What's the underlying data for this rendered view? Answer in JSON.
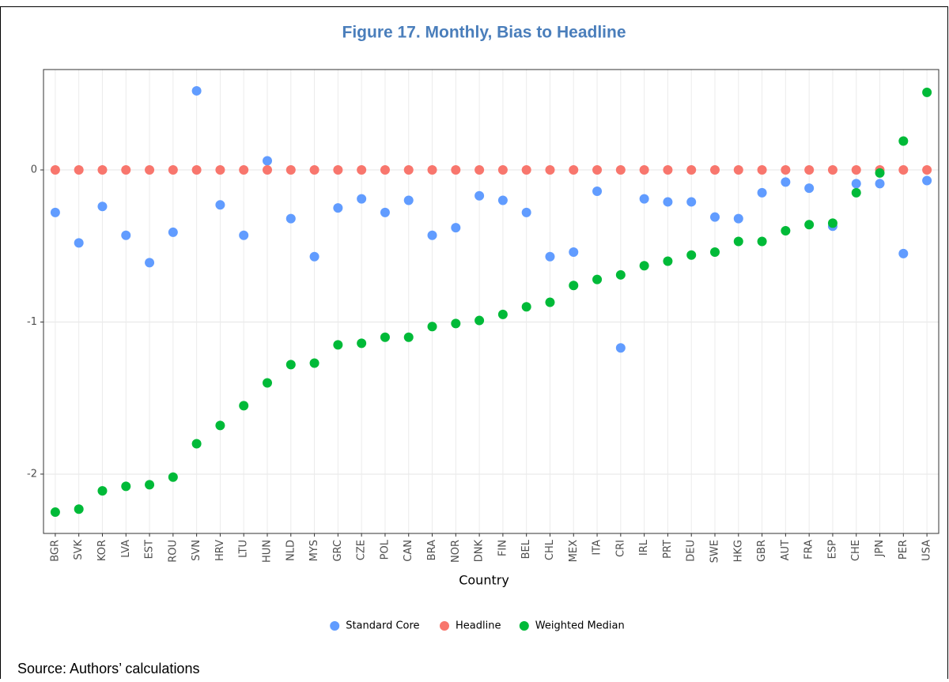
{
  "chart_data": {
    "type": "dot",
    "title": "Figure 17. Monthly, Bias to Headline",
    "xlabel": "Country",
    "categories": [
      "BGR",
      "SVK",
      "KOR",
      "LVA",
      "EST",
      "ROU",
      "SVN",
      "HRV",
      "LTU",
      "HUN",
      "NLD",
      "MYS",
      "GRC",
      "CZE",
      "POL",
      "CAN",
      "BRA",
      "NOR",
      "DNK",
      "FIN",
      "BEL",
      "CHL",
      "MEX",
      "ITA",
      "CRI",
      "IRL",
      "PRT",
      "DEU",
      "SWE",
      "HKG",
      "GBR",
      "AUT",
      "FRA",
      "ESP",
      "CHE",
      "JPN",
      "PER",
      "USA"
    ],
    "series": [
      {
        "name": "Standard Core",
        "color": "#619cff",
        "values": [
          -0.28,
          -0.48,
          -0.24,
          -0.43,
          -0.61,
          -0.41,
          0.52,
          -0.23,
          -0.43,
          0.06,
          -0.32,
          -0.57,
          -0.25,
          -0.19,
          -0.28,
          -0.2,
          -0.43,
          -0.38,
          -0.17,
          -0.2,
          -0.28,
          -0.57,
          -0.54,
          -0.14,
          -1.17,
          -0.19,
          -0.21,
          -0.21,
          -0.31,
          -0.32,
          -0.15,
          -0.08,
          -0.12,
          -0.37,
          -0.09,
          -0.09,
          -0.55,
          -0.07
        ]
      },
      {
        "name": "Headline",
        "color": "#f8766d",
        "values": [
          0,
          0,
          0,
          0,
          0,
          0,
          0,
          0,
          0,
          0,
          0,
          0,
          0,
          0,
          0,
          0,
          0,
          0,
          0,
          0,
          0,
          0,
          0,
          0,
          0,
          0,
          0,
          0,
          0,
          0,
          0,
          0,
          0,
          0,
          0,
          0,
          0,
          0
        ]
      },
      {
        "name": "Weighted Median",
        "color": "#00ba38",
        "values": [
          -2.25,
          -2.23,
          -2.11,
          -2.08,
          -2.07,
          -2.02,
          -1.8,
          -1.68,
          -1.55,
          -1.4,
          -1.28,
          -1.27,
          -1.15,
          -1.14,
          -1.1,
          -1.1,
          -1.03,
          -1.01,
          -0.99,
          -0.95,
          -0.9,
          -0.87,
          -0.76,
          -0.72,
          -0.69,
          -0.63,
          -0.6,
          -0.56,
          -0.54,
          -0.47,
          -0.47,
          -0.4,
          -0.36,
          -0.35,
          -0.15,
          -0.02,
          0.19,
          0.51
        ]
      }
    ],
    "ylim": [
      -2.39,
      0.66
    ],
    "yticks": [
      -2,
      -1,
      0
    ],
    "grid": true,
    "legend": "bottom"
  },
  "source": "Source: Authors’ calculations"
}
